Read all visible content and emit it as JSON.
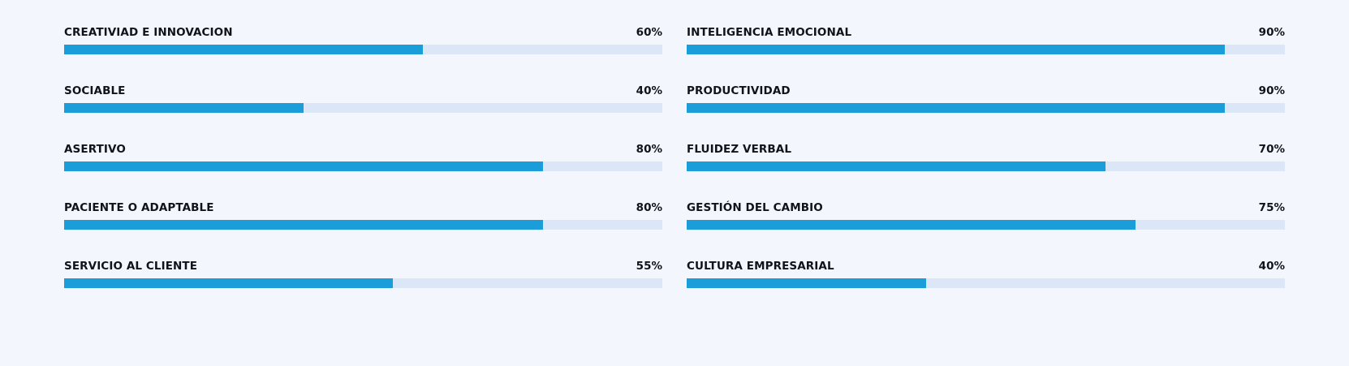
{
  "colors": {
    "background": "#f3f7fd",
    "bar_fill": "#1b9dd9",
    "bar_track": "#dbe6f6",
    "text": "#111318"
  },
  "skills": {
    "left": [
      {
        "label": "CREATIVIAD E INNOVACION",
        "value_text": "60%",
        "value": 60
      },
      {
        "label": "SOCIABLE",
        "value_text": "40%",
        "value": 40
      },
      {
        "label": "ASERTIVO",
        "value_text": "80%",
        "value": 80
      },
      {
        "label": "PACIENTE O ADAPTABLE",
        "value_text": "80%",
        "value": 80
      },
      {
        "label": "SERVICIO AL CLIENTE",
        "value_text": "55%",
        "value": 55
      }
    ],
    "right": [
      {
        "label": "INTELIGENCIA EMOCIONAL",
        "value_text": "90%",
        "value": 90
      },
      {
        "label": "PRODUCTIVIDAD",
        "value_text": "90%",
        "value": 90
      },
      {
        "label": "FLUIDEZ VERBAL",
        "value_text": "70%",
        "value": 70
      },
      {
        "label": "GESTIÓN DEL CAMBIO",
        "value_text": "75%",
        "value": 75
      },
      {
        "label": "CULTURA EMPRESARIAL",
        "value_text": "40%",
        "value": 40
      }
    ]
  }
}
